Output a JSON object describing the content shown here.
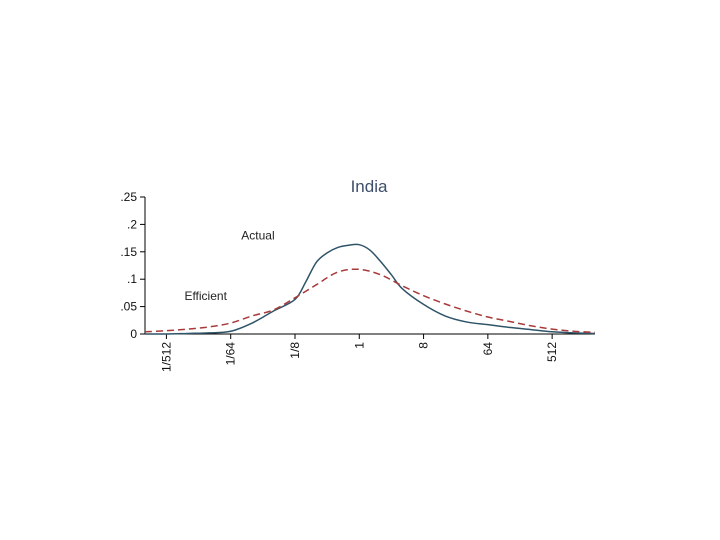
{
  "chart_data": {
    "type": "line",
    "title": "India",
    "xlabel": "",
    "ylabel": "",
    "x_scale": "log2",
    "x_ticks": [
      {
        "value": 0.001953125,
        "label": "1/512"
      },
      {
        "value": 0.015625,
        "label": "1/64"
      },
      {
        "value": 0.125,
        "label": "1/8"
      },
      {
        "value": 1,
        "label": "1"
      },
      {
        "value": 8,
        "label": "8"
      },
      {
        "value": 64,
        "label": "64"
      },
      {
        "value": 512,
        "label": "512"
      }
    ],
    "y_ticks": [
      {
        "value": 0,
        "label": "0"
      },
      {
        "value": 0.05,
        "label": ".05"
      },
      {
        "value": 0.1,
        "label": ".1"
      },
      {
        "value": 0.15,
        "label": ".15"
      },
      {
        "value": 0.2,
        "label": ".2"
      },
      {
        "value": 0.25,
        "label": ".25"
      }
    ],
    "xlim": [
      0.000977,
      2048
    ],
    "ylim": [
      0,
      0.25
    ],
    "grid": false,
    "series": [
      {
        "name": "Actual",
        "color": "#2f5468",
        "dash": "solid",
        "points": [
          [
            0.000977,
            0.0
          ],
          [
            0.001953,
            0.0
          ],
          [
            0.003906,
            0.001
          ],
          [
            0.007813,
            0.002
          ],
          [
            0.015625,
            0.005
          ],
          [
            0.03125,
            0.02
          ],
          [
            0.0625,
            0.042
          ],
          [
            0.125,
            0.063
          ],
          [
            0.176777,
            0.095
          ],
          [
            0.25,
            0.131
          ],
          [
            0.353553,
            0.148
          ],
          [
            0.5,
            0.158
          ],
          [
            0.707107,
            0.162
          ],
          [
            1,
            0.163
          ],
          [
            1.414214,
            0.153
          ],
          [
            2,
            0.132
          ],
          [
            2.828427,
            0.108
          ],
          [
            4,
            0.083
          ],
          [
            8,
            0.054
          ],
          [
            16,
            0.033
          ],
          [
            32,
            0.022
          ],
          [
            64,
            0.017
          ],
          [
            128,
            0.012
          ],
          [
            256,
            0.008
          ],
          [
            512,
            0.004
          ],
          [
            1024,
            0.002
          ],
          [
            2048,
            0.001
          ]
        ]
      },
      {
        "name": "Efficient",
        "color": "#a83a3a",
        "dash": "dashed",
        "points": [
          [
            0.000977,
            0.004
          ],
          [
            0.001953,
            0.006
          ],
          [
            0.003906,
            0.009
          ],
          [
            0.007813,
            0.013
          ],
          [
            0.015625,
            0.02
          ],
          [
            0.03125,
            0.033
          ],
          [
            0.0625,
            0.044
          ],
          [
            0.125,
            0.066
          ],
          [
            0.25,
            0.09
          ],
          [
            0.5,
            0.113
          ],
          [
            1,
            0.118
          ],
          [
            2,
            0.108
          ],
          [
            4,
            0.088
          ],
          [
            8,
            0.07
          ],
          [
            16,
            0.055
          ],
          [
            32,
            0.042
          ],
          [
            64,
            0.031
          ],
          [
            128,
            0.023
          ],
          [
            256,
            0.015
          ],
          [
            512,
            0.009
          ],
          [
            1024,
            0.005
          ],
          [
            2048,
            0.003
          ]
        ]
      }
    ],
    "annotations": [
      {
        "text": "Actual",
        "x": 0.022,
        "y": 0.172,
        "series": "Actual"
      },
      {
        "text": "Efficient",
        "x": 0.0035,
        "y": 0.062,
        "series": "Efficient"
      }
    ]
  }
}
